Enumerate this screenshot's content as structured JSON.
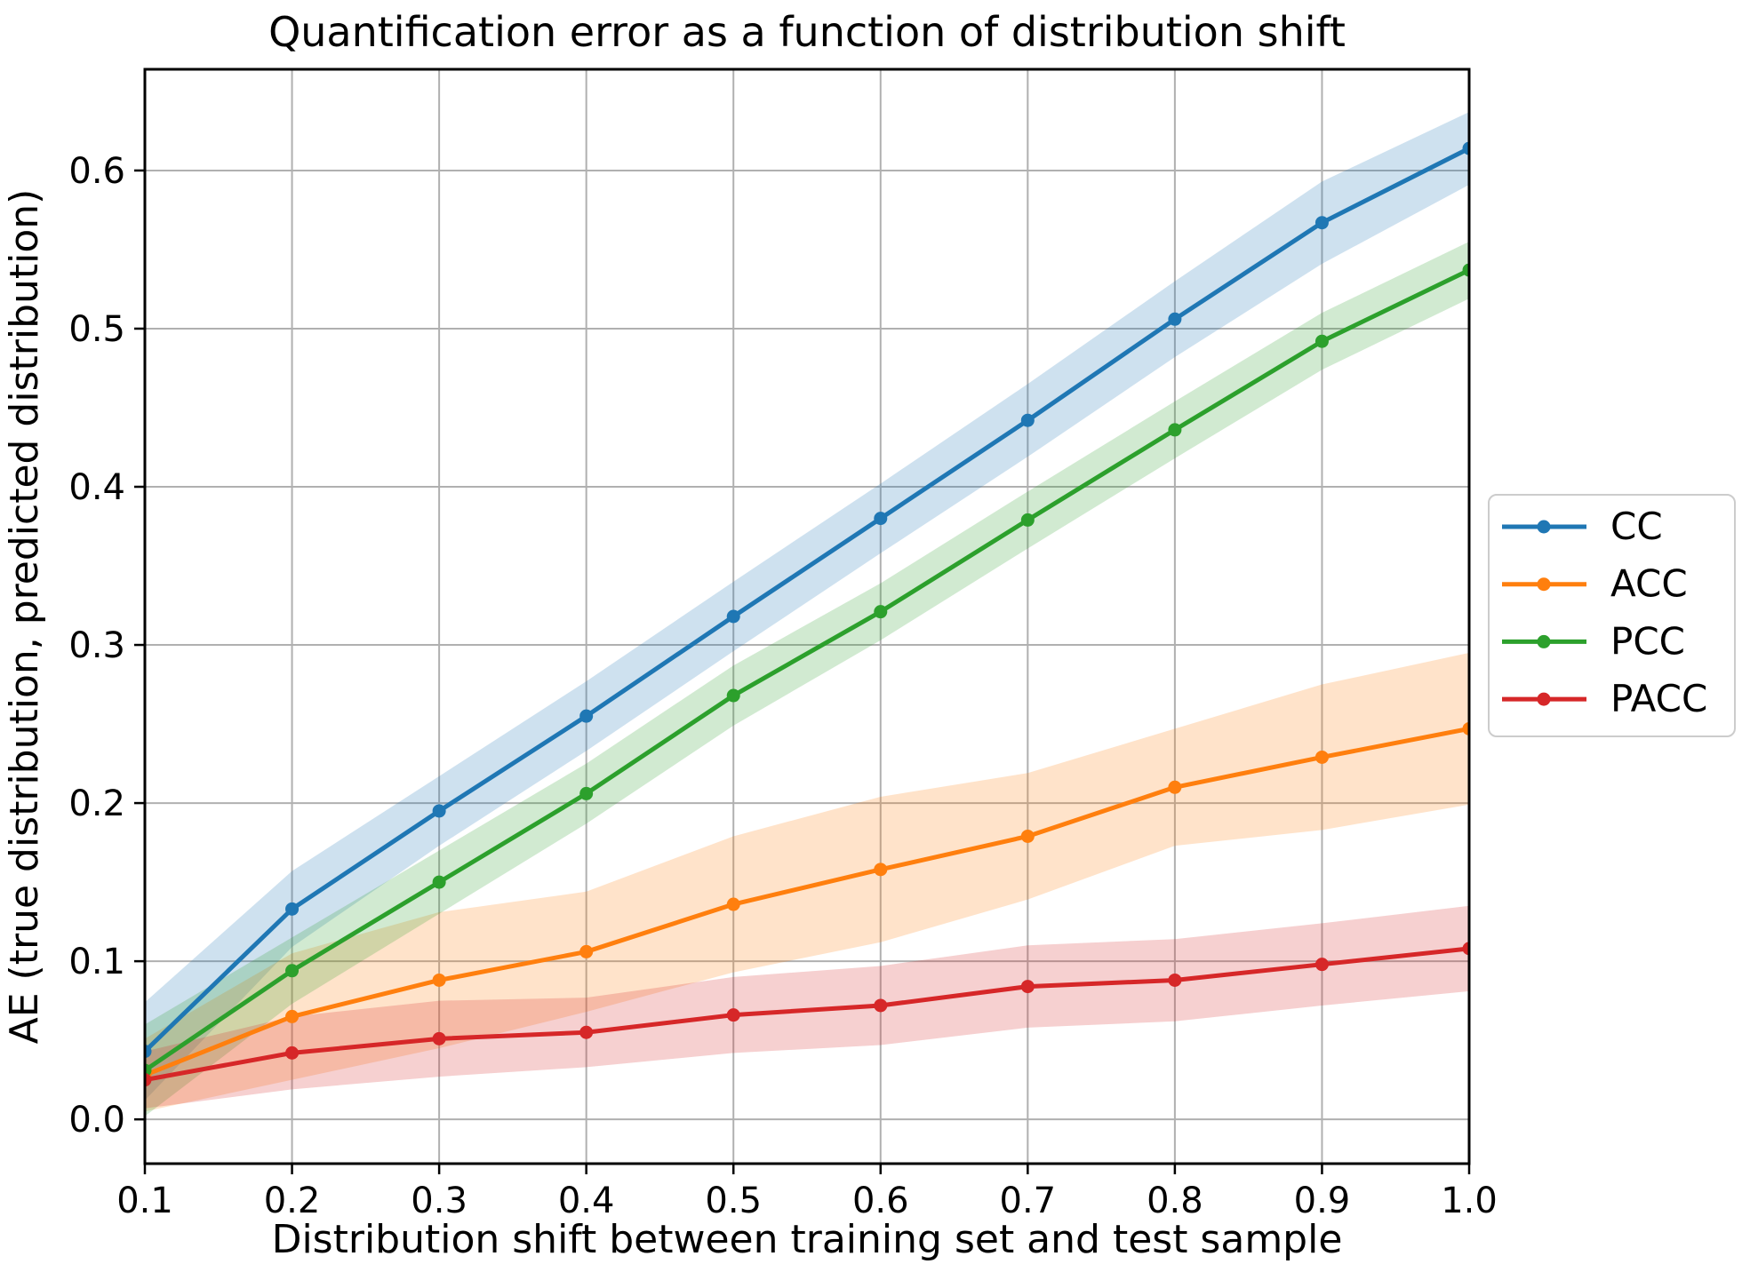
{
  "chart_data": {
    "type": "line",
    "title": "Quantification error as a function of distribution shift",
    "xlabel": "Distribution shift between training set and test sample",
    "ylabel": "AE (true distribution, predicted distribution)",
    "x": [
      0.1,
      0.2,
      0.3,
      0.4,
      0.5,
      0.6,
      0.7,
      0.8,
      0.9,
      1.0
    ],
    "xlim": [
      0.1,
      1.0
    ],
    "ylim": [
      -0.028,
      0.664
    ],
    "xtick_labels": [
      "0.1",
      "0.2",
      "0.3",
      "0.4",
      "0.5",
      "0.6",
      "0.7",
      "0.8",
      "0.9",
      "1.0"
    ],
    "ytick_labels": [
      "0.0",
      "0.1",
      "0.2",
      "0.3",
      "0.4",
      "0.5",
      "0.6"
    ],
    "grid": true,
    "grid_color": "#b0b0b0",
    "legend_position": "outside-right",
    "band_alpha": 0.22,
    "marker": "circle",
    "series": [
      {
        "name": "CC",
        "color": "#1f77b4",
        "values": [
          0.043,
          0.133,
          0.195,
          0.255,
          0.318,
          0.38,
          0.442,
          0.506,
          0.567,
          0.614
        ],
        "band_halfwidth": [
          0.031,
          0.024,
          0.022,
          0.022,
          0.022,
          0.022,
          0.023,
          0.024,
          0.026,
          0.023
        ]
      },
      {
        "name": "ACC",
        "color": "#ff7f0e",
        "values": [
          0.028,
          0.065,
          0.088,
          0.106,
          0.136,
          0.158,
          0.179,
          0.21,
          0.229,
          0.247
        ],
        "band_halfwidth": [
          0.023,
          0.04,
          0.043,
          0.038,
          0.043,
          0.046,
          0.04,
          0.037,
          0.046,
          0.048
        ]
      },
      {
        "name": "PCC",
        "color": "#2ca02c",
        "values": [
          0.031,
          0.094,
          0.15,
          0.206,
          0.268,
          0.321,
          0.379,
          0.436,
          0.492,
          0.537
        ],
        "band_halfwidth": [
          0.029,
          0.021,
          0.02,
          0.019,
          0.019,
          0.018,
          0.018,
          0.018,
          0.018,
          0.018
        ]
      },
      {
        "name": "PACC",
        "color": "#d62728",
        "values": [
          0.025,
          0.042,
          0.051,
          0.055,
          0.066,
          0.072,
          0.084,
          0.088,
          0.098,
          0.108
        ],
        "band_halfwidth": [
          0.018,
          0.023,
          0.024,
          0.022,
          0.024,
          0.025,
          0.026,
          0.026,
          0.026,
          0.027
        ]
      }
    ]
  }
}
